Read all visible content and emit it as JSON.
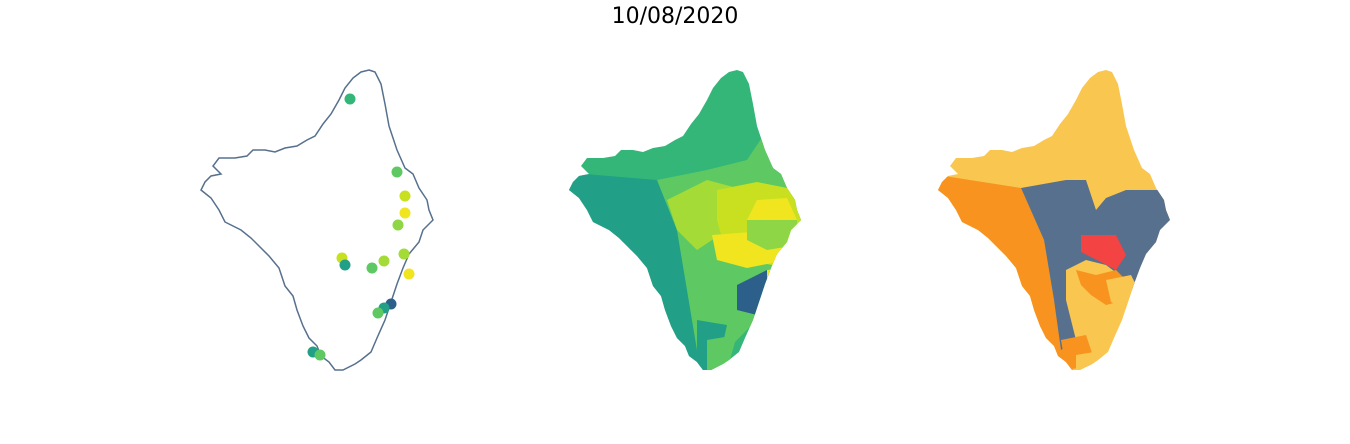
{
  "figure": {
    "title": "10/08/2020"
  },
  "colors": {
    "outline": "#56708d",
    "viridis_dark": "#2c5f8a",
    "viridis_teal": "#21a087",
    "viridis_green": "#34b679",
    "viridis_lightgreen": "#5ec962",
    "viridis_lime": "#8ed646",
    "viridis_yellowgreen": "#c8e020",
    "viridis_yellow": "#f0e51f",
    "class_yellow": "#f9c650",
    "class_orange": "#f7931e",
    "class_slate": "#56708d",
    "class_red": "#f44343"
  },
  "panels": [
    {
      "name": "station-points",
      "style": "outline-with-points"
    },
    {
      "name": "municipality-choropleth",
      "style": "viridis-choropleth"
    },
    {
      "name": "risk-class-choropleth",
      "style": "categorical-choropleth"
    }
  ]
}
